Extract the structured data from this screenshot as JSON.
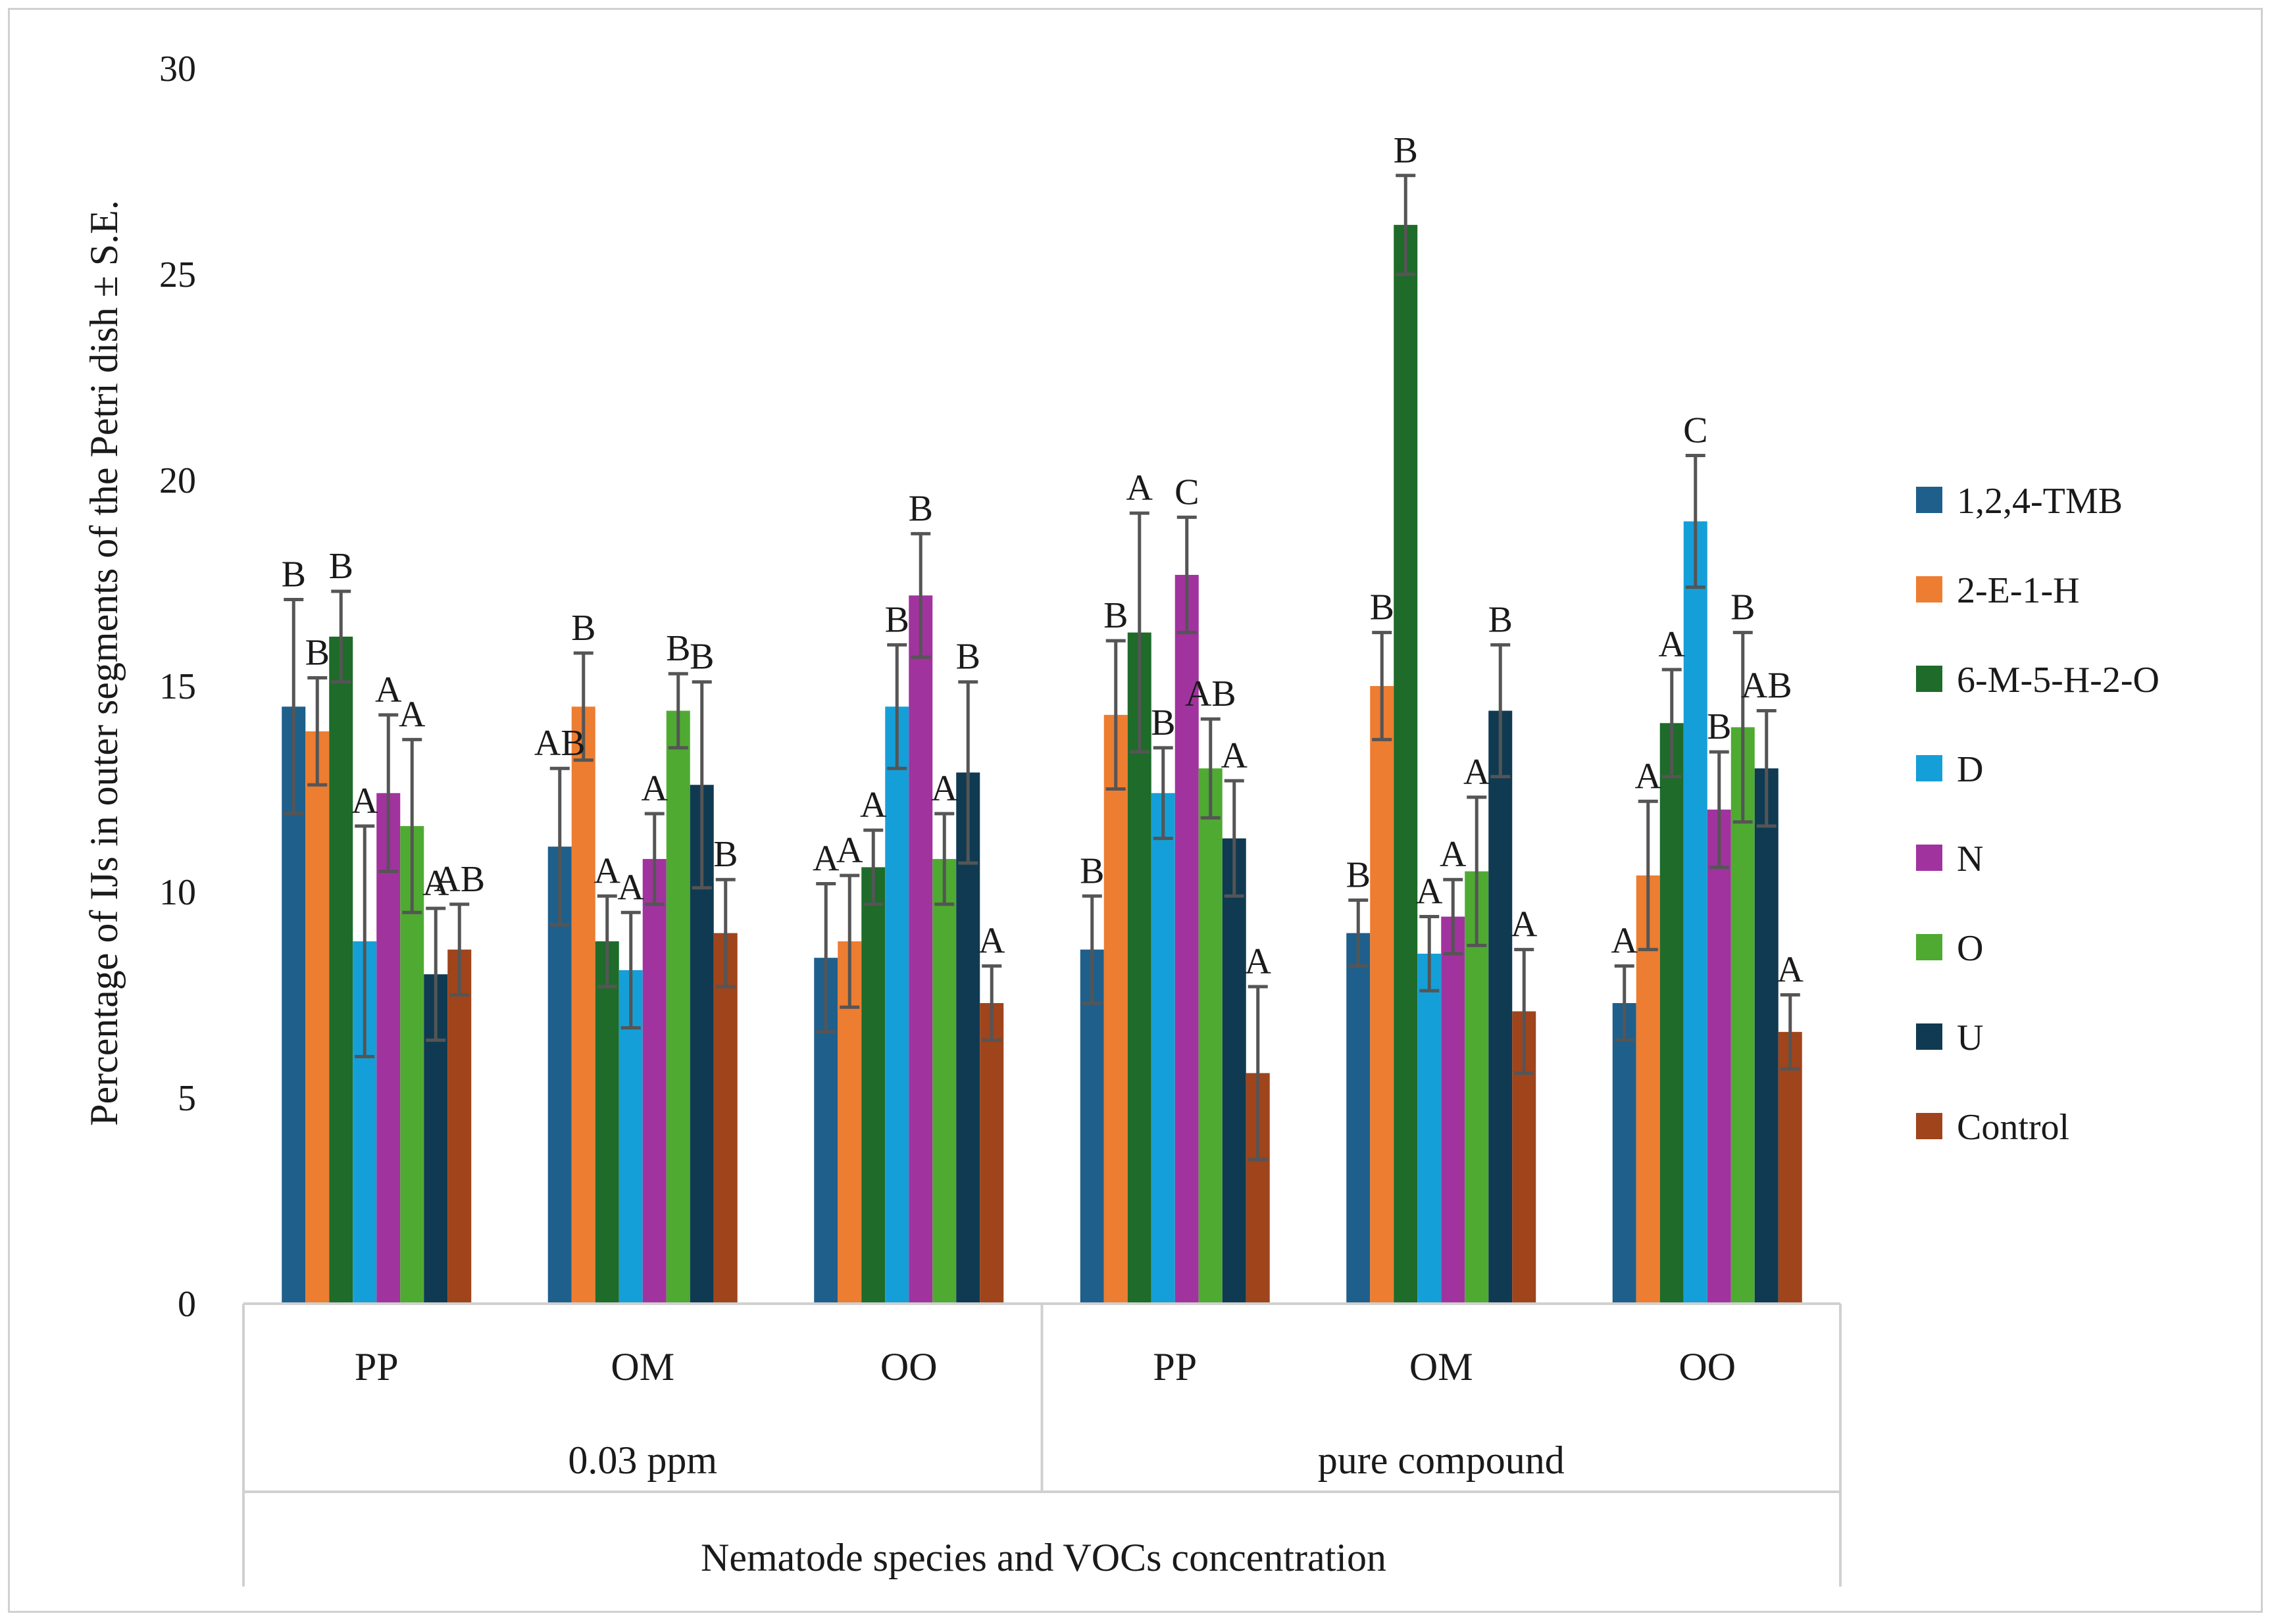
{
  "chart_data": {
    "type": "bar",
    "title": "",
    "ylabel": "Percentage of IJs in outer segments of the Petri dish ± S.E.",
    "xlabel": "Nematode species and VOCs concentration",
    "ylim": [
      0,
      30
    ],
    "yticks": [
      0,
      5,
      10,
      15,
      20,
      25,
      30
    ],
    "grid": false,
    "legend_position": "right",
    "categories": [
      "PP",
      "OM",
      "OO",
      "PP",
      "OM",
      "OO"
    ],
    "groups": [
      {
        "label": "0.03 ppm",
        "categories": [
          "PP",
          "OM",
          "OO"
        ]
      },
      {
        "label": "pure compound",
        "categories": [
          "PP",
          "OM",
          "OO"
        ]
      }
    ],
    "series": [
      {
        "name": "1,2,4-TMB",
        "color": "#1F5F8B",
        "values": [
          14.5,
          11.1,
          8.4,
          8.6,
          9.0,
          7.3
        ],
        "errors": [
          2.6,
          1.9,
          1.8,
          1.3,
          0.8,
          0.9
        ],
        "letters": [
          "B",
          "AB",
          "A",
          "B",
          "B",
          "A"
        ]
      },
      {
        "name": "2-E-1-H",
        "color": "#ED7D31",
        "values": [
          13.9,
          14.5,
          8.8,
          14.3,
          15.0,
          10.4
        ],
        "errors": [
          1.3,
          1.3,
          1.6,
          1.8,
          1.3,
          1.8
        ],
        "letters": [
          "B",
          "B",
          "A",
          "B",
          "B",
          "A"
        ]
      },
      {
        "name": "6-M-5-H-2-O",
        "color": "#1E6B2A",
        "values": [
          16.2,
          8.8,
          10.6,
          16.3,
          26.2,
          14.1
        ],
        "errors": [
          1.1,
          1.1,
          0.9,
          2.9,
          1.2,
          1.3
        ],
        "letters": [
          "B",
          "A",
          "A",
          "A",
          "B",
          "A"
        ]
      },
      {
        "name": "D",
        "color": "#159FD8",
        "values": [
          8.8,
          8.1,
          14.5,
          12.4,
          8.5,
          19.0
        ],
        "errors": [
          2.8,
          1.4,
          1.5,
          1.1,
          0.9,
          1.6
        ],
        "letters": [
          "A",
          "A",
          "B",
          "B",
          "A",
          "C"
        ]
      },
      {
        "name": "N",
        "color": "#A1339E",
        "values": [
          12.4,
          10.8,
          17.2,
          17.7,
          9.4,
          12.0
        ],
        "errors": [
          1.9,
          1.1,
          1.5,
          1.4,
          0.9,
          1.4
        ],
        "letters": [
          "A",
          "A",
          "B",
          "C",
          "A",
          "B"
        ]
      },
      {
        "name": "O",
        "color": "#4FAA32",
        "values": [
          11.6,
          14.4,
          10.8,
          13.0,
          10.5,
          14.0
        ],
        "errors": [
          2.1,
          0.9,
          1.1,
          1.2,
          1.8,
          2.3
        ],
        "letters": [
          "A",
          "B",
          "A",
          "AB",
          "A",
          "B"
        ]
      },
      {
        "name": "U",
        "color": "#0F3A52",
        "values": [
          8.0,
          12.6,
          12.9,
          11.3,
          14.4,
          13.0
        ],
        "errors": [
          1.6,
          2.5,
          2.2,
          1.4,
          1.6,
          1.4
        ],
        "letters": [
          "A",
          "B",
          "B",
          "A",
          "B",
          "AB"
        ]
      },
      {
        "name": "Control",
        "color": "#A0441C",
        "values": [
          8.6,
          9.0,
          7.3,
          5.6,
          7.1,
          6.6
        ],
        "errors": [
          1.1,
          1.3,
          0.9,
          2.1,
          1.5,
          0.9
        ],
        "letters": [
          "AB",
          "B",
          "A",
          "A",
          "A",
          "A"
        ]
      }
    ]
  }
}
